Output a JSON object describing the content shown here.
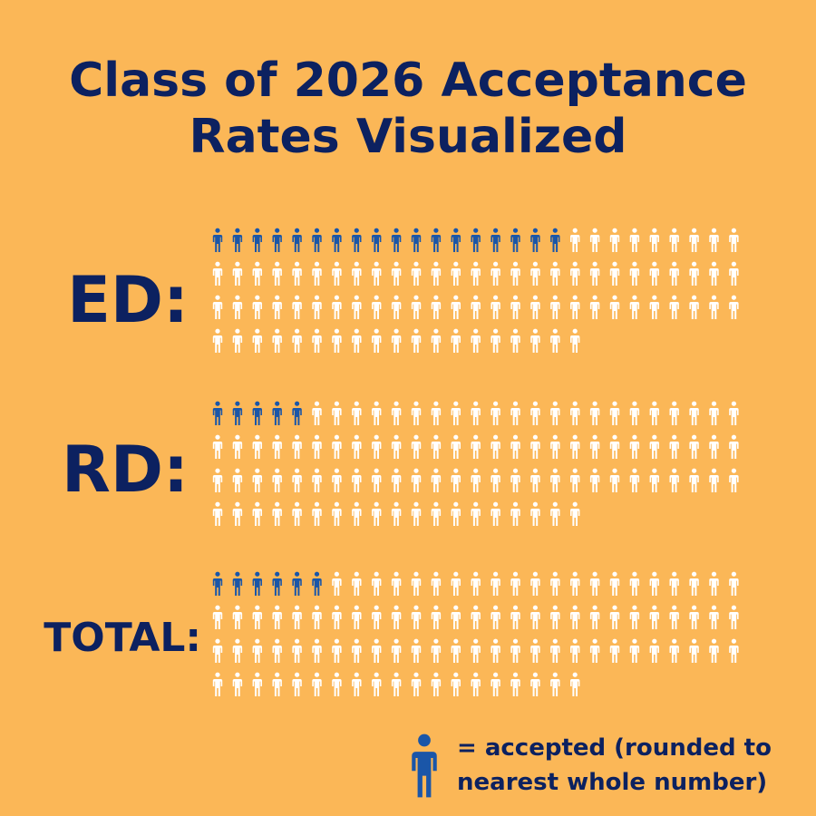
{
  "title": "Class of 2026 Acceptance Rates Visualized",
  "colors": {
    "background": "#fbb757",
    "navy": "#0c2160",
    "accepted": "#1a56a8",
    "not_accepted": "#ffffff"
  },
  "chart_data": {
    "type": "pictogram",
    "unit": "person icon",
    "rows": [
      {
        "label": "ED:",
        "total": 100,
        "accepted": 18
      },
      {
        "label": "RD:",
        "total": 100,
        "accepted": 5
      },
      {
        "label": "TOTAL:",
        "total": 100,
        "accepted": 6
      }
    ],
    "legend": {
      "icon": "person-icon",
      "text": "= accepted (rounded to nearest whole number)"
    }
  }
}
